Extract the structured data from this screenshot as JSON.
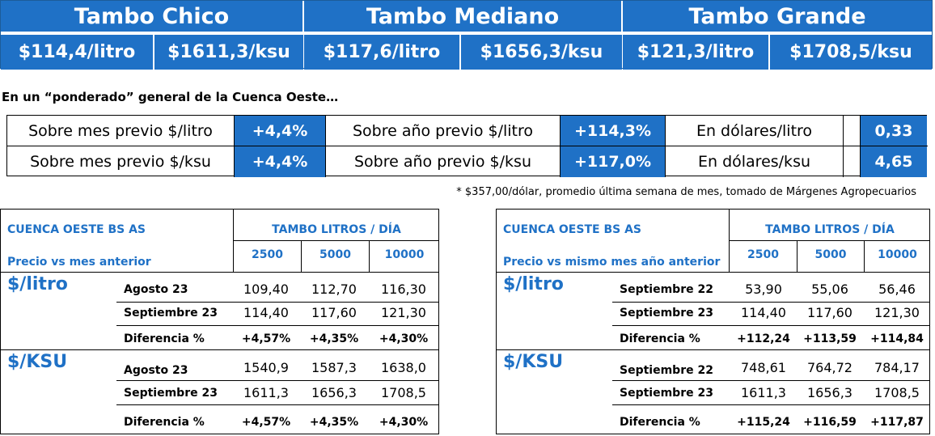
{
  "banner": {
    "groups": [
      {
        "title": "Tambo Chico",
        "litro": "$114,4/litro",
        "ksu": "$1611,3/ksu"
      },
      {
        "title": "Tambo Mediano",
        "litro": "$117,6/litro",
        "ksu": "$1656,3/ksu"
      },
      {
        "title": "Tambo Grande",
        "litro": "$121,3/litro",
        "ksu": "$1708,5/ksu"
      }
    ]
  },
  "subtitle": "En un “ponderado” general de la Cuenca Oeste…",
  "summary": {
    "rows": [
      {
        "l1": "Sobre mes previo $/litro",
        "v1": "+4,4%",
        "l2": "Sobre año previo $/litro",
        "v2": "+114,3%",
        "l3": "En dólares/litro",
        "v3": "0,33"
      },
      {
        "l1": "Sobre mes previo $/ksu",
        "v1": "+4,4%",
        "l2": "Sobre año previo $/ksu",
        "v2": "+117,0%",
        "l3": "En dólares/ksu",
        "v3": "4,65"
      }
    ]
  },
  "footnote": "* $357,00/dólar, promedio última semana de mes, tomado de Márgenes Agropecuarios",
  "tables": [
    {
      "region": "CUENCA OESTE BS AS",
      "subtitle": "Precio vs mes anterior",
      "group_header": "TAMBO LITROS / DÍA",
      "cols": [
        "2500",
        "5000",
        "10000"
      ],
      "litro": {
        "label": "$/litro",
        "rows": [
          {
            "name": "Agosto 23",
            "values": [
              "109,40",
              "112,70",
              "116,30"
            ]
          },
          {
            "name": "Septiembre 23",
            "values": [
              "114,40",
              "117,60",
              "121,30"
            ]
          },
          {
            "name": "Diferencia %",
            "values": [
              "+4,57%",
              "+4,35%",
              "+4,30%"
            ]
          }
        ]
      },
      "ksu": {
        "label": "$/KSU",
        "rows": [
          {
            "name": "Agosto 23",
            "values": [
              "1540,9",
              "1587,3",
              "1638,0"
            ]
          },
          {
            "name": "Septiembre 23",
            "values": [
              "1611,3",
              "1656,3",
              "1708,5"
            ]
          },
          {
            "name": "Diferencia %",
            "values": [
              "+4,57%",
              "+4,35%",
              "+4,30%"
            ]
          }
        ]
      }
    },
    {
      "region": "CUENCA OESTE BS AS",
      "subtitle": "Precio vs mismo mes año anterior",
      "group_header": "TAMBO LITROS / DÍA",
      "cols": [
        "2500",
        "5000",
        "10000"
      ],
      "litro": {
        "label": "$/litro",
        "rows": [
          {
            "name": "Septiembre 22",
            "values": [
              "53,90",
              "55,06",
              "56,46"
            ]
          },
          {
            "name": "Septiembre 23",
            "values": [
              "114,40",
              "117,60",
              "121,30"
            ]
          },
          {
            "name": "Diferencia %",
            "values": [
              "+112,24",
              "+113,59",
              "+114,84"
            ]
          }
        ]
      },
      "ksu": {
        "label": "$/KSU",
        "rows": [
          {
            "name": "Septiembre 22",
            "values": [
              "748,61",
              "764,72",
              "784,17"
            ]
          },
          {
            "name": "Septiembre 23",
            "values": [
              "1611,3",
              "1656,3",
              "1708,5"
            ]
          },
          {
            "name": "Diferencia %",
            "values": [
              "+115,24",
              "+116,59",
              "+117,87"
            ]
          }
        ]
      }
    }
  ]
}
